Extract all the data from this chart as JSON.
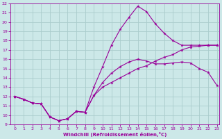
{
  "xlabel": "Windchill (Refroidissement éolien,°C)",
  "bg_color": "#cce8e8",
  "grid_color": "#aacccc",
  "line_color": "#990099",
  "xlim_min": -0.5,
  "xlim_max": 23.3,
  "ylim_min": 9,
  "ylim_max": 22,
  "xticks": [
    0,
    1,
    2,
    3,
    4,
    5,
    6,
    7,
    8,
    9,
    10,
    11,
    12,
    13,
    14,
    15,
    16,
    17,
    18,
    19,
    20,
    21,
    22,
    23
  ],
  "yticks": [
    9,
    10,
    11,
    12,
    13,
    14,
    15,
    16,
    17,
    18,
    19,
    20,
    21,
    22
  ],
  "line1_x": [
    0,
    1,
    2,
    3,
    4,
    5,
    6,
    7,
    8,
    9,
    10,
    11,
    12,
    13,
    14,
    15,
    16,
    17,
    18,
    19,
    20,
    21,
    22,
    23
  ],
  "line1_y": [
    12.0,
    11.7,
    11.3,
    11.2,
    9.8,
    9.4,
    9.6,
    10.4,
    10.3,
    12.1,
    13.0,
    13.5,
    14.0,
    14.5,
    15.0,
    15.3,
    15.8,
    16.2,
    16.5,
    17.0,
    17.3,
    17.4,
    17.5,
    17.5
  ],
  "line2_x": [
    0,
    1,
    2,
    3,
    4,
    5,
    6,
    7,
    8,
    9,
    10,
    11,
    12,
    13,
    14,
    15,
    16,
    17,
    18,
    19,
    20,
    21,
    22,
    23
  ],
  "line2_y": [
    12.0,
    11.7,
    11.3,
    11.2,
    9.8,
    9.4,
    9.6,
    10.4,
    10.3,
    12.1,
    13.5,
    14.5,
    15.2,
    15.7,
    16.0,
    15.8,
    15.5,
    15.5,
    15.6,
    15.7,
    15.6,
    15.0,
    14.6,
    13.2
  ],
  "line3_x": [
    0,
    1,
    2,
    3,
    4,
    5,
    6,
    7,
    8,
    9,
    10,
    11,
    12,
    13,
    14,
    15,
    16,
    17,
    18,
    19,
    20,
    21,
    22,
    23
  ],
  "line3_y": [
    12.0,
    11.7,
    11.3,
    11.2,
    9.8,
    9.4,
    9.6,
    10.4,
    10.3,
    13.0,
    15.2,
    17.5,
    19.2,
    20.5,
    21.7,
    21.1,
    19.8,
    18.8,
    18.0,
    17.5,
    17.5,
    17.5,
    17.5,
    17.5
  ]
}
